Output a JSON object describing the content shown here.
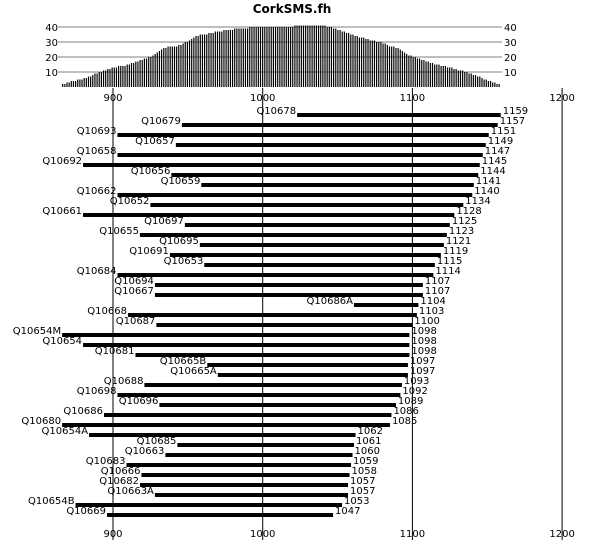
{
  "chart_data": {
    "type": "bar",
    "title": "CorkSMS.fh",
    "xaxis": {
      "ticks": [
        900,
        1000,
        1100,
        1200
      ],
      "grid": true
    },
    "histogram": {
      "ticks": [
        10,
        20,
        30,
        40
      ],
      "ylim": [
        0,
        42
      ],
      "x_range": [
        866,
        1159
      ],
      "values": [
        2,
        2,
        3,
        3,
        4,
        4,
        4,
        5,
        5,
        5,
        6,
        6,
        7,
        7,
        8,
        9,
        9,
        10,
        10,
        11,
        11,
        12,
        12,
        13,
        13,
        13,
        14,
        14,
        14,
        14,
        15,
        15,
        16,
        16,
        17,
        17,
        18,
        18,
        19,
        19,
        20,
        20,
        21,
        22,
        23,
        24,
        25,
        26,
        26,
        27,
        27,
        27,
        27,
        27,
        28,
        28,
        29,
        30,
        30,
        31,
        32,
        33,
        34,
        34,
        35,
        35,
        35,
        35,
        36,
        36,
        36,
        37,
        37,
        37,
        37,
        38,
        38,
        38,
        38,
        38,
        39,
        39,
        39,
        39,
        39,
        39,
        39,
        40,
        40,
        40,
        40,
        40,
        40,
        40,
        40,
        40,
        40,
        40,
        40,
        40,
        40,
        40,
        40,
        40,
        40,
        40,
        40,
        40,
        41,
        41,
        41,
        41,
        41,
        41,
        41,
        41,
        41,
        41,
        41,
        41,
        41,
        41,
        41,
        40,
        40,
        40,
        39,
        39,
        38,
        38,
        37,
        37,
        36,
        36,
        35,
        35,
        34,
        34,
        33,
        33,
        33,
        32,
        32,
        31,
        31,
        31,
        30,
        30,
        30,
        29,
        29,
        28,
        27,
        27,
        27,
        26,
        26,
        25,
        24,
        23,
        22,
        21,
        21,
        20,
        20,
        19,
        19,
        18,
        18,
        17,
        17,
        16,
        16,
        15,
        15,
        15,
        14,
        14,
        14,
        13,
        13,
        13,
        12,
        12,
        11,
        11,
        11,
        10,
        10,
        9,
        9,
        8,
        8,
        7,
        7,
        6,
        5,
        5,
        4,
        4,
        3,
        3,
        2,
        2
      ]
    },
    "categories": [
      "Q10678",
      "Q10679",
      "Q10693",
      "Q10657",
      "Q10658",
      "Q10692",
      "Q10656",
      "Q10659",
      "Q10662",
      "Q10652",
      "Q10661",
      "Q10697",
      "Q10655",
      "Q10695",
      "Q10691",
      "Q10653",
      "Q10684",
      "Q10694",
      "Q10667",
      "Q10686A",
      "Q10668",
      "Q10687",
      "Q10654M",
      "Q10654",
      "Q10681",
      "Q10665B",
      "Q10665A",
      "Q10688",
      "Q10698",
      "Q10696",
      "Q10686",
      "Q10680",
      "Q10654A",
      "Q10685",
      "Q10663",
      "Q10683",
      "Q10666",
      "Q10682",
      "Q10663A",
      "Q10654B",
      "Q10669"
    ],
    "starts": [
      1023,
      946,
      903,
      942,
      903,
      880,
      939,
      959,
      903,
      925,
      880,
      948,
      918,
      958,
      938,
      961,
      903,
      928,
      928,
      1061,
      910,
      929,
      866,
      880,
      915,
      963,
      970,
      921,
      903,
      931,
      894,
      866,
      884,
      943,
      935,
      909,
      919,
      918,
      928,
      875,
      896
    ],
    "values": [
      1159,
      1157,
      1151,
      1149,
      1147,
      1145,
      1144,
      1141,
      1140,
      1134,
      1128,
      1125,
      1123,
      1121,
      1119,
      1115,
      1114,
      1107,
      1107,
      1104,
      1103,
      1100,
      1098,
      1098,
      1098,
      1097,
      1097,
      1093,
      1092,
      1089,
      1086,
      1085,
      1062,
      1061,
      1060,
      1059,
      1058,
      1057,
      1057,
      1053,
      1047
    ]
  }
}
